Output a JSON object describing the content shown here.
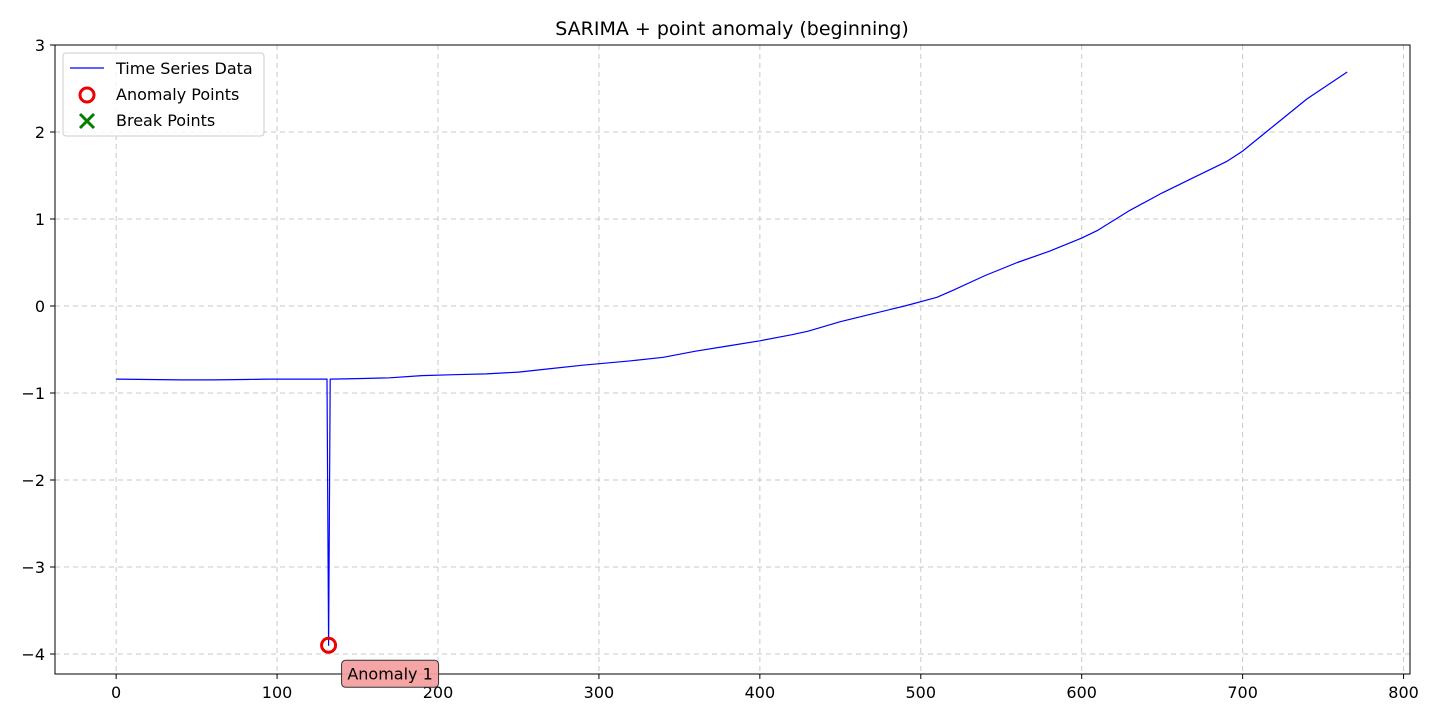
{
  "chart_data": {
    "type": "line",
    "title": "SARIMA + point anomaly (beginning)",
    "xlabel": "",
    "ylabel": "",
    "xlim": [
      -38,
      804
    ],
    "ylim": [
      -4.23,
      3.0
    ],
    "xticks": [
      0,
      100,
      200,
      300,
      400,
      500,
      600,
      700,
      800
    ],
    "yticks": [
      3,
      2,
      1,
      0,
      -1,
      -2,
      -3,
      -4
    ],
    "ytick_labels": [
      "3",
      "2",
      "1",
      "0",
      "−1",
      "−2",
      "−3",
      "−4"
    ],
    "grid": true,
    "legend_position": "top-left",
    "legend": [
      {
        "label": "Time Series Data",
        "marker": "line",
        "color": "#0000ff"
      },
      {
        "label": "Anomaly Points",
        "marker": "circle",
        "color": "#ee0000"
      },
      {
        "label": "Break Points",
        "marker": "x",
        "color": "#007f00"
      }
    ],
    "series": [
      {
        "name": "Time Series Data",
        "color": "#0000ff",
        "points": [
          [
            0,
            -0.84
          ],
          [
            20,
            -0.845
          ],
          [
            40,
            -0.85
          ],
          [
            60,
            -0.85
          ],
          [
            80,
            -0.845
          ],
          [
            95,
            -0.84
          ],
          [
            110,
            -0.84
          ],
          [
            125,
            -0.84
          ],
          [
            131,
            -0.84
          ],
          [
            132,
            -3.9
          ],
          [
            133,
            -0.84
          ],
          [
            150,
            -0.835
          ],
          [
            170,
            -0.825
          ],
          [
            190,
            -0.8
          ],
          [
            210,
            -0.79
          ],
          [
            230,
            -0.78
          ],
          [
            250,
            -0.76
          ],
          [
            270,
            -0.72
          ],
          [
            290,
            -0.68
          ],
          [
            320,
            -0.63
          ],
          [
            340,
            -0.59
          ],
          [
            360,
            -0.52
          ],
          [
            380,
            -0.46
          ],
          [
            400,
            -0.4
          ],
          [
            420,
            -0.33
          ],
          [
            430,
            -0.29
          ],
          [
            450,
            -0.18
          ],
          [
            470,
            -0.09
          ],
          [
            490,
            0.0
          ],
          [
            510,
            0.1
          ],
          [
            520,
            0.18
          ],
          [
            540,
            0.35
          ],
          [
            560,
            0.5
          ],
          [
            580,
            0.63
          ],
          [
            600,
            0.78
          ],
          [
            610,
            0.87
          ],
          [
            630,
            1.1
          ],
          [
            650,
            1.3
          ],
          [
            670,
            1.48
          ],
          [
            690,
            1.66
          ],
          [
            700,
            1.78
          ],
          [
            720,
            2.08
          ],
          [
            740,
            2.38
          ],
          [
            765,
            2.69
          ]
        ]
      }
    ],
    "anomaly_points": [
      [
        132,
        -3.9
      ]
    ],
    "break_points": [],
    "annotations": [
      {
        "text": "Anomaly 1",
        "x": 132,
        "y": -3.9,
        "color": "#f4a0a0"
      }
    ]
  }
}
